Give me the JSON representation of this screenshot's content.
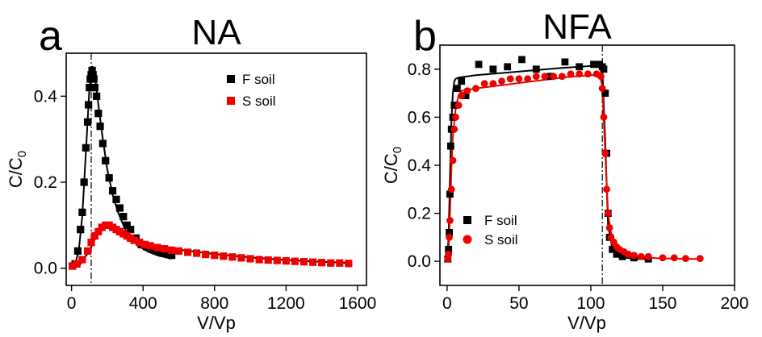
{
  "chart_data": [
    {
      "panel": "a",
      "title": "NA",
      "type": "scatter",
      "xlabel": "V/Vp",
      "ylabel_main": "C/C",
      "ylabel_sub": "0",
      "xlim": [
        -30,
        1650
      ],
      "ylim": [
        -0.04,
        0.5
      ],
      "xticks": [
        0,
        400,
        800,
        1200,
        1600
      ],
      "xtick_labels": [
        "0",
        "400",
        "800",
        "1200",
        "1600"
      ],
      "yticks": [
        0.0,
        0.2,
        0.4
      ],
      "ytick_labels": [
        "0.0",
        "0.2",
        "0.4"
      ],
      "vline_x": 110,
      "legend_position": "top-right",
      "series": [
        {
          "name": "F soil",
          "color": "#000000",
          "marker": "square",
          "x": [
            5,
            20,
            35,
            50,
            60,
            70,
            80,
            90,
            95,
            100,
            105,
            110,
            115,
            120,
            125,
            130,
            140,
            150,
            160,
            175,
            190,
            210,
            230,
            250,
            270,
            290,
            310,
            330,
            360,
            390,
            420,
            450,
            480,
            510,
            540,
            560
          ],
          "y": [
            0.005,
            0.01,
            0.04,
            0.09,
            0.13,
            0.2,
            0.28,
            0.34,
            0.38,
            0.42,
            0.44,
            0.45,
            0.46,
            0.45,
            0.44,
            0.42,
            0.4,
            0.36,
            0.33,
            0.29,
            0.25,
            0.21,
            0.18,
            0.16,
            0.14,
            0.12,
            0.1,
            0.09,
            0.07,
            0.055,
            0.05,
            0.045,
            0.04,
            0.035,
            0.032,
            0.03
          ]
        },
        {
          "name": "S soil",
          "color": "#ee0000",
          "marker": "square",
          "x": [
            5,
            30,
            60,
            90,
            110,
            130,
            150,
            170,
            190,
            210,
            230,
            250,
            270,
            290,
            310,
            330,
            350,
            380,
            410,
            440,
            480,
            520,
            560,
            600,
            650,
            700,
            750,
            800,
            850,
            900,
            950,
            1000,
            1050,
            1100,
            1150,
            1200,
            1250,
            1300,
            1350,
            1400,
            1450,
            1500,
            1550
          ],
          "y": [
            0.005,
            0.01,
            0.02,
            0.04,
            0.06,
            0.075,
            0.085,
            0.095,
            0.1,
            0.1,
            0.095,
            0.09,
            0.085,
            0.08,
            0.075,
            0.07,
            0.065,
            0.06,
            0.055,
            0.052,
            0.048,
            0.045,
            0.042,
            0.04,
            0.037,
            0.035,
            0.032,
            0.03,
            0.028,
            0.026,
            0.024,
            0.022,
            0.02,
            0.019,
            0.018,
            0.017,
            0.016,
            0.015,
            0.014,
            0.013,
            0.012,
            0.012,
            0.011
          ]
        }
      ],
      "fits": [
        {
          "name": "F soil fit",
          "color": "#000000",
          "x": [
            0,
            20,
            40,
            60,
            80,
            100,
            115,
            130,
            150,
            175,
            200,
            230,
            260,
            300,
            340,
            380,
            430,
            480,
            530,
            560
          ],
          "y": [
            0.0,
            0.01,
            0.04,
            0.12,
            0.27,
            0.42,
            0.47,
            0.45,
            0.38,
            0.3,
            0.23,
            0.17,
            0.13,
            0.09,
            0.065,
            0.05,
            0.038,
            0.03,
            0.025,
            0.022
          ]
        },
        {
          "name": "S soil fit",
          "color": "#000000",
          "x": [
            0,
            50,
            100,
            150,
            200,
            250,
            300,
            400,
            500,
            600,
            800,
            1000,
            1200,
            1400,
            1560
          ],
          "y": [
            0.0,
            0.01,
            0.04,
            0.085,
            0.1,
            0.095,
            0.082,
            0.062,
            0.05,
            0.043,
            0.033,
            0.025,
            0.019,
            0.015,
            0.012
          ]
        }
      ]
    },
    {
      "panel": "b",
      "title": "NFA",
      "type": "scatter",
      "xlabel": "V/Vp",
      "ylabel_main": "C/C",
      "ylabel_sub": "0",
      "xlim": [
        -5,
        200
      ],
      "ylim": [
        -0.1,
        0.9
      ],
      "xticks": [
        0,
        50,
        100,
        150,
        200
      ],
      "xtick_labels": [
        "0",
        "50",
        "100",
        "150",
        "200"
      ],
      "yticks": [
        0.0,
        0.2,
        0.4,
        0.6,
        0.8
      ],
      "ytick_labels": [
        "0.0",
        "0.2",
        "0.4",
        "0.6",
        "0.8"
      ],
      "vline_x": 108,
      "legend_position": "bottom-left",
      "series": [
        {
          "name": "F soil",
          "color": "#000000",
          "marker": "square",
          "x": [
            0.5,
            1,
            1.5,
            2,
            2.5,
            3,
            4,
            5,
            7,
            10,
            13,
            22,
            32,
            42,
            52,
            62,
            72,
            82,
            92,
            102,
            106,
            108,
            109,
            110,
            111,
            112,
            113,
            115,
            118,
            122,
            130,
            140
          ],
          "y": [
            0.01,
            0.05,
            0.12,
            0.28,
            0.48,
            0.55,
            0.6,
            0.65,
            0.72,
            0.75,
            0.69,
            0.82,
            0.8,
            0.81,
            0.84,
            0.8,
            0.77,
            0.83,
            0.81,
            0.82,
            0.82,
            0.81,
            0.8,
            0.7,
            0.45,
            0.2,
            0.1,
            0.05,
            0.03,
            0.02,
            0.015,
            0.01
          ]
        },
        {
          "name": "S soil",
          "color": "#ee0000",
          "marker": "circle",
          "x": [
            0.5,
            1,
            1.5,
            2,
            3,
            4,
            5,
            6,
            8,
            10,
            14,
            20,
            26,
            32,
            38,
            44,
            50,
            56,
            62,
            68,
            74,
            80,
            86,
            92,
            98,
            104,
            107,
            108,
            109,
            110,
            111,
            112,
            113,
            114,
            116,
            118,
            120,
            123,
            126,
            130,
            135,
            140,
            150,
            158,
            166,
            176
          ],
          "y": [
            0.01,
            0.03,
            0.1,
            0.17,
            0.3,
            0.42,
            0.55,
            0.6,
            0.65,
            0.69,
            0.71,
            0.72,
            0.74,
            0.74,
            0.75,
            0.76,
            0.76,
            0.76,
            0.77,
            0.77,
            0.77,
            0.77,
            0.78,
            0.78,
            0.78,
            0.78,
            0.77,
            0.72,
            0.6,
            0.45,
            0.3,
            0.2,
            0.14,
            0.1,
            0.08,
            0.06,
            0.05,
            0.04,
            0.03,
            0.025,
            0.02,
            0.02,
            0.015,
            0.015,
            0.012,
            0.012
          ]
        }
      ],
      "fits": [
        {
          "name": "F soil fit",
          "color": "#000000",
          "x": [
            0,
            1,
            2,
            3,
            4,
            5,
            6,
            8,
            20,
            50,
            80,
            105,
            108,
            110,
            112,
            115,
            120,
            130,
            140
          ],
          "y": [
            0.0,
            0.1,
            0.35,
            0.58,
            0.7,
            0.75,
            0.76,
            0.765,
            0.775,
            0.79,
            0.805,
            0.815,
            0.8,
            0.5,
            0.15,
            0.05,
            0.02,
            0.01,
            0.01
          ]
        },
        {
          "name": "S soil fit",
          "color": "#ee0000",
          "x": [
            0,
            1,
            2,
            3,
            4,
            6,
            8,
            10,
            20,
            40,
            60,
            80,
            100,
            106,
            108,
            110,
            112,
            115,
            120,
            130,
            150,
            176
          ],
          "y": [
            0.0,
            0.05,
            0.2,
            0.38,
            0.52,
            0.64,
            0.69,
            0.71,
            0.72,
            0.735,
            0.75,
            0.765,
            0.775,
            0.775,
            0.73,
            0.45,
            0.2,
            0.08,
            0.035,
            0.018,
            0.012,
            0.01
          ]
        }
      ]
    }
  ]
}
